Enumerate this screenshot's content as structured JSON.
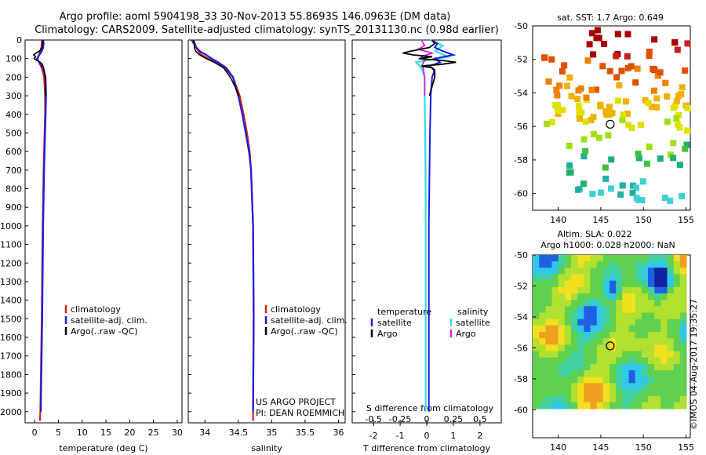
{
  "title_line1": "Argo profile: aoml 5904198_33 30-Nov-2013 55.8693S 146.0963E (DM data)",
  "title_line2": "Climatology: CARS2009. Satellite-adjusted climatology: synTS_20131130.nc (0.98d earlier)",
  "footer_vertical": "©IMOS 04-Aug-2017 19:35:27",
  "project_line1": "US ARGO PROJECT",
  "project_line2": "PI: DEAN ROEMMICH",
  "colors": {
    "climatology": "#e0201b",
    "satellite": "#1a1ae6",
    "argo": "#000000",
    "sal_sat": "#33dddd",
    "sal_argo": "#e020e0"
  },
  "chart_data": [
    {
      "type": "line",
      "id": "temperature",
      "xlabel": "temperature (deg C)",
      "ylabel": "",
      "xlim": [
        -2,
        31
      ],
      "ylim": [
        2060,
        0
      ],
      "xticks": [
        0,
        5,
        10,
        15,
        20,
        25,
        30
      ],
      "yticks": [
        0,
        100,
        200,
        300,
        400,
        500,
        600,
        700,
        800,
        900,
        1000,
        1100,
        1200,
        1300,
        1400,
        1500,
        1600,
        1700,
        1800,
        1900,
        2000
      ],
      "legend": [
        "climatology",
        "satellite-adj. clim.",
        "Argo(..raw -QC)"
      ],
      "series": [
        {
          "name": "climatology",
          "depth": [
            0,
            20,
            40,
            60,
            80,
            100,
            120,
            150,
            200,
            300,
            400,
            500,
            700,
            1000,
            1500,
            2000,
            2050
          ],
          "values": [
            1.5,
            1.5,
            1.4,
            1.2,
            0.9,
            0.6,
            0.9,
            1.5,
            2.0,
            2.2,
            2.2,
            2.1,
            1.9,
            1.7,
            1.5,
            1.2,
            1.1
          ]
        },
        {
          "name": "satellite-adj. clim.",
          "depth": [
            0,
            20,
            40,
            60,
            80,
            100,
            120,
            150,
            200,
            300,
            400,
            500,
            700,
            1000,
            1500,
            2000
          ],
          "values": [
            1.8,
            1.9,
            1.8,
            1.5,
            1.0,
            0.5,
            1.0,
            1.8,
            2.3,
            2.4,
            2.3,
            2.2,
            2.0,
            1.8,
            1.6,
            1.3
          ]
        },
        {
          "name": "Argo(..raw -QC)",
          "depth": [
            0,
            20,
            40,
            60,
            70,
            80,
            90,
            100,
            110,
            120,
            130,
            150,
            180,
            200,
            250,
            300
          ],
          "values": [
            1.7,
            1.7,
            1.6,
            1.0,
            0.3,
            -0.2,
            0.2,
            -0.1,
            0.5,
            1.2,
            1.6,
            1.9,
            2.1,
            2.2,
            2.3,
            2.3
          ]
        }
      ]
    },
    {
      "type": "line",
      "id": "salinity",
      "xlabel": "salinity",
      "xlim": [
        33.75,
        36.1
      ],
      "ylim": [
        2060,
        0
      ],
      "xticks": [
        34,
        34.5,
        35,
        35.5,
        36
      ],
      "xticklabels": [
        "34",
        "34.5",
        "35",
        "35.5",
        "36"
      ],
      "legend": [
        "climatology",
        "satellite-adj. clim.",
        "Argo(..raw -QC)"
      ],
      "series": [
        {
          "name": "climatology",
          "depth": [
            0,
            50,
            80,
            100,
            120,
            150,
            200,
            300,
            400,
            500,
            600,
            700,
            800,
            1000,
            1500,
            2000,
            2050
          ],
          "values": [
            33.83,
            33.88,
            33.95,
            34.05,
            34.15,
            34.3,
            34.42,
            34.52,
            34.58,
            34.63,
            34.67,
            34.69,
            34.7,
            34.72,
            34.73,
            34.72,
            34.72
          ]
        },
        {
          "name": "satellite-adj. clim.",
          "depth": [
            0,
            30,
            60,
            80,
            100,
            120,
            150,
            200,
            300,
            400,
            500,
            600,
            700,
            800,
            1000,
            1500,
            2000
          ],
          "values": [
            33.8,
            33.85,
            33.92,
            34.02,
            34.1,
            34.2,
            34.32,
            34.42,
            34.5,
            34.56,
            34.61,
            34.66,
            34.69,
            34.7,
            34.72,
            34.73,
            34.72
          ]
        },
        {
          "name": "Argo(..raw -QC)",
          "depth": [
            0,
            20,
            40,
            60,
            80,
            100,
            120,
            150,
            200,
            250,
            300
          ],
          "values": [
            33.83,
            33.84,
            33.84,
            33.86,
            33.92,
            34.02,
            34.14,
            34.28,
            34.38,
            34.45,
            34.5
          ]
        }
      ]
    },
    {
      "type": "line",
      "id": "difference",
      "xlabel": "T difference from climatology",
      "xlabel_top": "S difference from climatology",
      "xlim": [
        -2.8,
        2.8
      ],
      "ylim": [
        2060,
        0
      ],
      "xticks": [
        -2,
        -1,
        0,
        1,
        2
      ],
      "sticks": [
        -0.5,
        -0.25,
        0,
        0.25,
        0.5
      ],
      "legend_temperature": {
        "title": "temperature",
        "items": [
          "satellite",
          "Argo"
        ]
      },
      "legend_salinity": {
        "title": "salinity",
        "items": [
          "satellite",
          "Argo"
        ]
      },
      "series": [
        {
          "name": "T satellite",
          "depth": [
            0,
            20,
            40,
            60,
            80,
            100,
            120,
            140,
            160,
            200,
            300,
            500,
            1000,
            1500,
            2000
          ],
          "values": [
            0.2,
            0.4,
            0.3,
            0.6,
            1.0,
            0.3,
            0.5,
            0.1,
            0.3,
            0.2,
            0.15,
            0.12,
            0.08,
            0.08,
            0.08
          ]
        },
        {
          "name": "T Argo",
          "depth": [
            0,
            20,
            40,
            60,
            70,
            80,
            90,
            100,
            110,
            120,
            130,
            140,
            150,
            170,
            200,
            250,
            300
          ],
          "values": [
            0.2,
            0.3,
            0.1,
            -0.6,
            -0.9,
            -0.5,
            0.2,
            -0.3,
            0.6,
            1.1,
            0.6,
            -0.2,
            0.2,
            0.3,
            0.3,
            0.2,
            0.1
          ]
        },
        {
          "name": "S satellite",
          "depth": [
            0,
            30,
            60,
            90,
            120,
            150,
            200,
            300,
            500,
            800,
            1200,
            1600,
            2000
          ],
          "values": [
            0.03,
            0.15,
            0.08,
            0.2,
            -0.1,
            -0.05,
            -0.02,
            -0.02,
            -0.015,
            -0.01,
            -0.01,
            -0.01,
            -0.01
          ]
        },
        {
          "name": "S Argo",
          "depth": [
            0,
            30,
            50,
            70,
            90,
            110,
            130,
            160,
            200,
            250,
            300
          ],
          "values": [
            -0.05,
            -0.02,
            -0.08,
            0.05,
            -0.05,
            -0.02,
            -0.04,
            -0.03,
            -0.02,
            -0.02,
            -0.02
          ]
        }
      ]
    },
    {
      "type": "heatmap",
      "id": "sst-map",
      "title": "sat. SST: 1.7 Argo: 0.649",
      "xlim": [
        137,
        155.5
      ],
      "ylim": [
        -61,
        -50
      ],
      "xticks": [
        140,
        145,
        150,
        155
      ],
      "yticks": [
        -50,
        -52,
        -54,
        -56,
        -58,
        -60
      ],
      "marker": {
        "lon": 146.1,
        "lat": -55.87
      }
    },
    {
      "type": "heatmap",
      "id": "sla-map",
      "title_line1": "Altim. SLA: 0.022",
      "title_line2": "Argo h1000: 0.028 h2000: NaN",
      "xlim": [
        137,
        155.5
      ],
      "ylim": [
        -61.8,
        -50
      ],
      "xticks": [
        140,
        145,
        150,
        155
      ],
      "yticks": [
        -50,
        -52,
        -54,
        -56,
        -58,
        -60
      ],
      "marker": {
        "lon": 146.1,
        "lat": -55.87
      }
    }
  ]
}
